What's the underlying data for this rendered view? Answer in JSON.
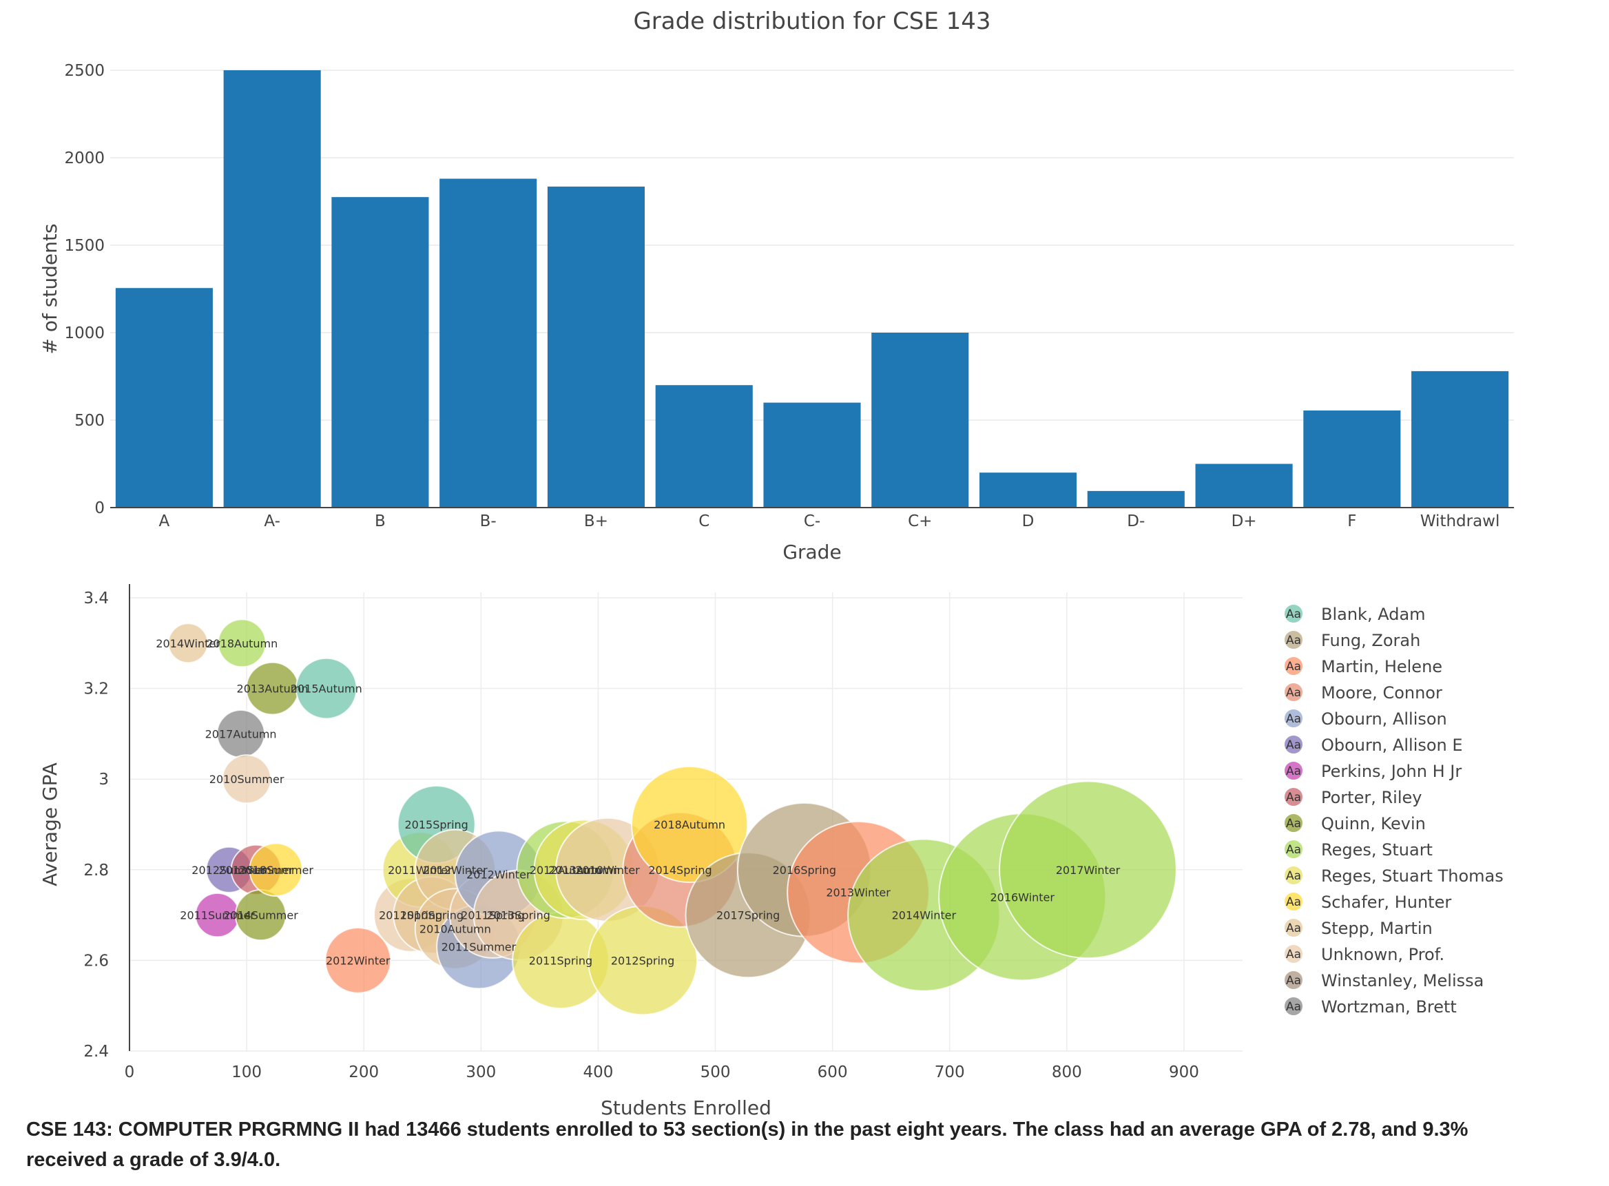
{
  "chart_data": [
    {
      "type": "bar",
      "title": "Grade distribution for CSE 143",
      "xlabel": "Grade",
      "ylabel": "# of students",
      "ylim": [
        0,
        2500
      ],
      "yticks": [
        0,
        500,
        1000,
        1500,
        2000,
        2500
      ],
      "grid": true,
      "bar_color": "#1f77b4",
      "categories": [
        "A",
        "A-",
        "B",
        "B-",
        "B+",
        "C",
        "C-",
        "C+",
        "D",
        "D-",
        "D+",
        "F",
        "Withdrawl"
      ],
      "values": [
        1255,
        2500,
        1775,
        1880,
        1835,
        700,
        600,
        1000,
        200,
        95,
        250,
        555,
        780
      ]
    },
    {
      "type": "scatter",
      "xlabel": "Students Enrolled",
      "ylabel": "Average GPA",
      "xlim": [
        0,
        950
      ],
      "ylim": [
        2.4,
        3.4
      ],
      "xticks": [
        0,
        100,
        200,
        300,
        400,
        500,
        600,
        700,
        800,
        900
      ],
      "yticks": [
        2.4,
        2.6,
        2.8,
        3.0,
        3.2,
        3.4
      ],
      "ytick_labels": [
        "2.4",
        "2.6",
        "2.8",
        "3",
        "3.2",
        "3.4"
      ],
      "grid": true,
      "legend_position": "right",
      "legend_marker_text": "Aa",
      "series": [
        {
          "name": "Blank, Adam",
          "color": "#66c2a5",
          "points": [
            {
              "label": "2015Spring",
              "x": 262,
              "y": 2.9
            },
            {
              "label": "2015Autumn",
              "x": 168,
              "y": 3.2
            }
          ]
        },
        {
          "name": "Fung, Zorah",
          "color": "#b3a17a",
          "points": [
            {
              "label": "2016Spring",
              "x": 576,
              "y": 2.8
            },
            {
              "label": "2017Spring",
              "x": 528,
              "y": 2.7
            }
          ]
        },
        {
          "name": "Martin, Helene",
          "color": "#fc8d62",
          "points": [
            {
              "label": "2013Winter",
              "x": 622,
              "y": 2.75
            },
            {
              "label": "2012Winter",
              "x": 195,
              "y": 2.6
            }
          ]
        },
        {
          "name": "Moore, Connor",
          "color": "#e78a70",
          "points": [
            {
              "label": "2014Spring",
              "x": 470,
              "y": 2.8
            }
          ]
        },
        {
          "name": "Obourn, Allison",
          "color": "#8da0cb",
          "points": [
            {
              "label": "2011Summer",
              "x": 298,
              "y": 2.63
            },
            {
              "label": "2012Winter",
              "x": 315,
              "y": 2.79
            }
          ]
        },
        {
          "name": "Obourn, Allison E",
          "color": "#7b6bb5",
          "points": [
            {
              "label": "2012Summer",
              "x": 85,
              "y": 2.8
            }
          ]
        },
        {
          "name": "Perkins, John H Jr",
          "color": "#c33bb0",
          "points": [
            {
              "label": "2011Summer",
              "x": 75,
              "y": 2.7
            }
          ]
        },
        {
          "name": "Porter, Riley",
          "color": "#c75c65",
          "points": [
            {
              "label": "2013Summer",
              "x": 108,
              "y": 2.8
            }
          ]
        },
        {
          "name": "Quinn, Kevin",
          "color": "#8a9a25",
          "points": [
            {
              "label": "2013Autumn",
              "x": 122,
              "y": 3.2
            },
            {
              "label": "2014Summer",
              "x": 112,
              "y": 2.7
            }
          ]
        },
        {
          "name": "Reges, Stuart",
          "color": "#a6d854",
          "points": [
            {
              "label": "2017Winter",
              "x": 818,
              "y": 2.8
            },
            {
              "label": "2016Winter",
              "x": 762,
              "y": 2.74
            },
            {
              "label": "2014Winter",
              "x": 678,
              "y": 2.7
            },
            {
              "label": "2018Autumn",
              "x": 96,
              "y": 3.3
            },
            {
              "label": "2012Autumn",
              "x": 372,
              "y": 2.8
            }
          ]
        },
        {
          "name": "Reges, Stuart Thomas",
          "color": "#e5e05a",
          "points": [
            {
              "label": "2011Spring",
              "x": 368,
              "y": 2.6
            },
            {
              "label": "2012Spring",
              "x": 438,
              "y": 2.6
            },
            {
              "label": "2011Winter",
              "x": 248,
              "y": 2.8
            },
            {
              "label": "2013Autumn",
              "x": 388,
              "y": 2.8
            }
          ]
        },
        {
          "name": "Schafer, Hunter",
          "color": "#ffd92f",
          "points": [
            {
              "label": "2018Autumn",
              "x": 478,
              "y": 2.9
            },
            {
              "label": "2018Summer",
              "x": 125,
              "y": 2.8
            }
          ]
        },
        {
          "name": "Stepp, Martin",
          "color": "#e5c494",
          "points": [
            {
              "label": "2012Winter",
              "x": 278,
              "y": 2.8
            },
            {
              "label": "2010Autumn",
              "x": 278,
              "y": 2.67
            },
            {
              "label": "2010Spring",
              "x": 258,
              "y": 2.7
            },
            {
              "label": "2014Winter",
              "x": 50,
              "y": 3.3
            }
          ]
        },
        {
          "name": "Unknown, Prof.",
          "color": "#e8c9a5",
          "points": [
            {
              "label": "2010Summer",
              "x": 100,
              "y": 3.0
            },
            {
              "label": "2011Spring",
              "x": 240,
              "y": 2.7
            },
            {
              "label": "2011Spring",
              "x": 310,
              "y": 2.7
            },
            {
              "label": "2013Spring",
              "x": 332,
              "y": 2.7
            },
            {
              "label": "2010Winter",
              "x": 408,
              "y": 2.8
            }
          ]
        },
        {
          "name": "Winstanley, Melissa",
          "color": "#a58f7b",
          "points": []
        },
        {
          "name": "Wortzman, Brett",
          "color": "#808080",
          "points": [
            {
              "label": "2017Autumn",
              "x": 95,
              "y": 3.1
            }
          ]
        }
      ]
    }
  ],
  "summary": "CSE 143: COMPUTER PRGRMNG II had 13466 students enrolled to 53 section(s) in the past eight years. The class had an average GPA of 2.78, and 9.3% received a grade of 3.9/4.0."
}
